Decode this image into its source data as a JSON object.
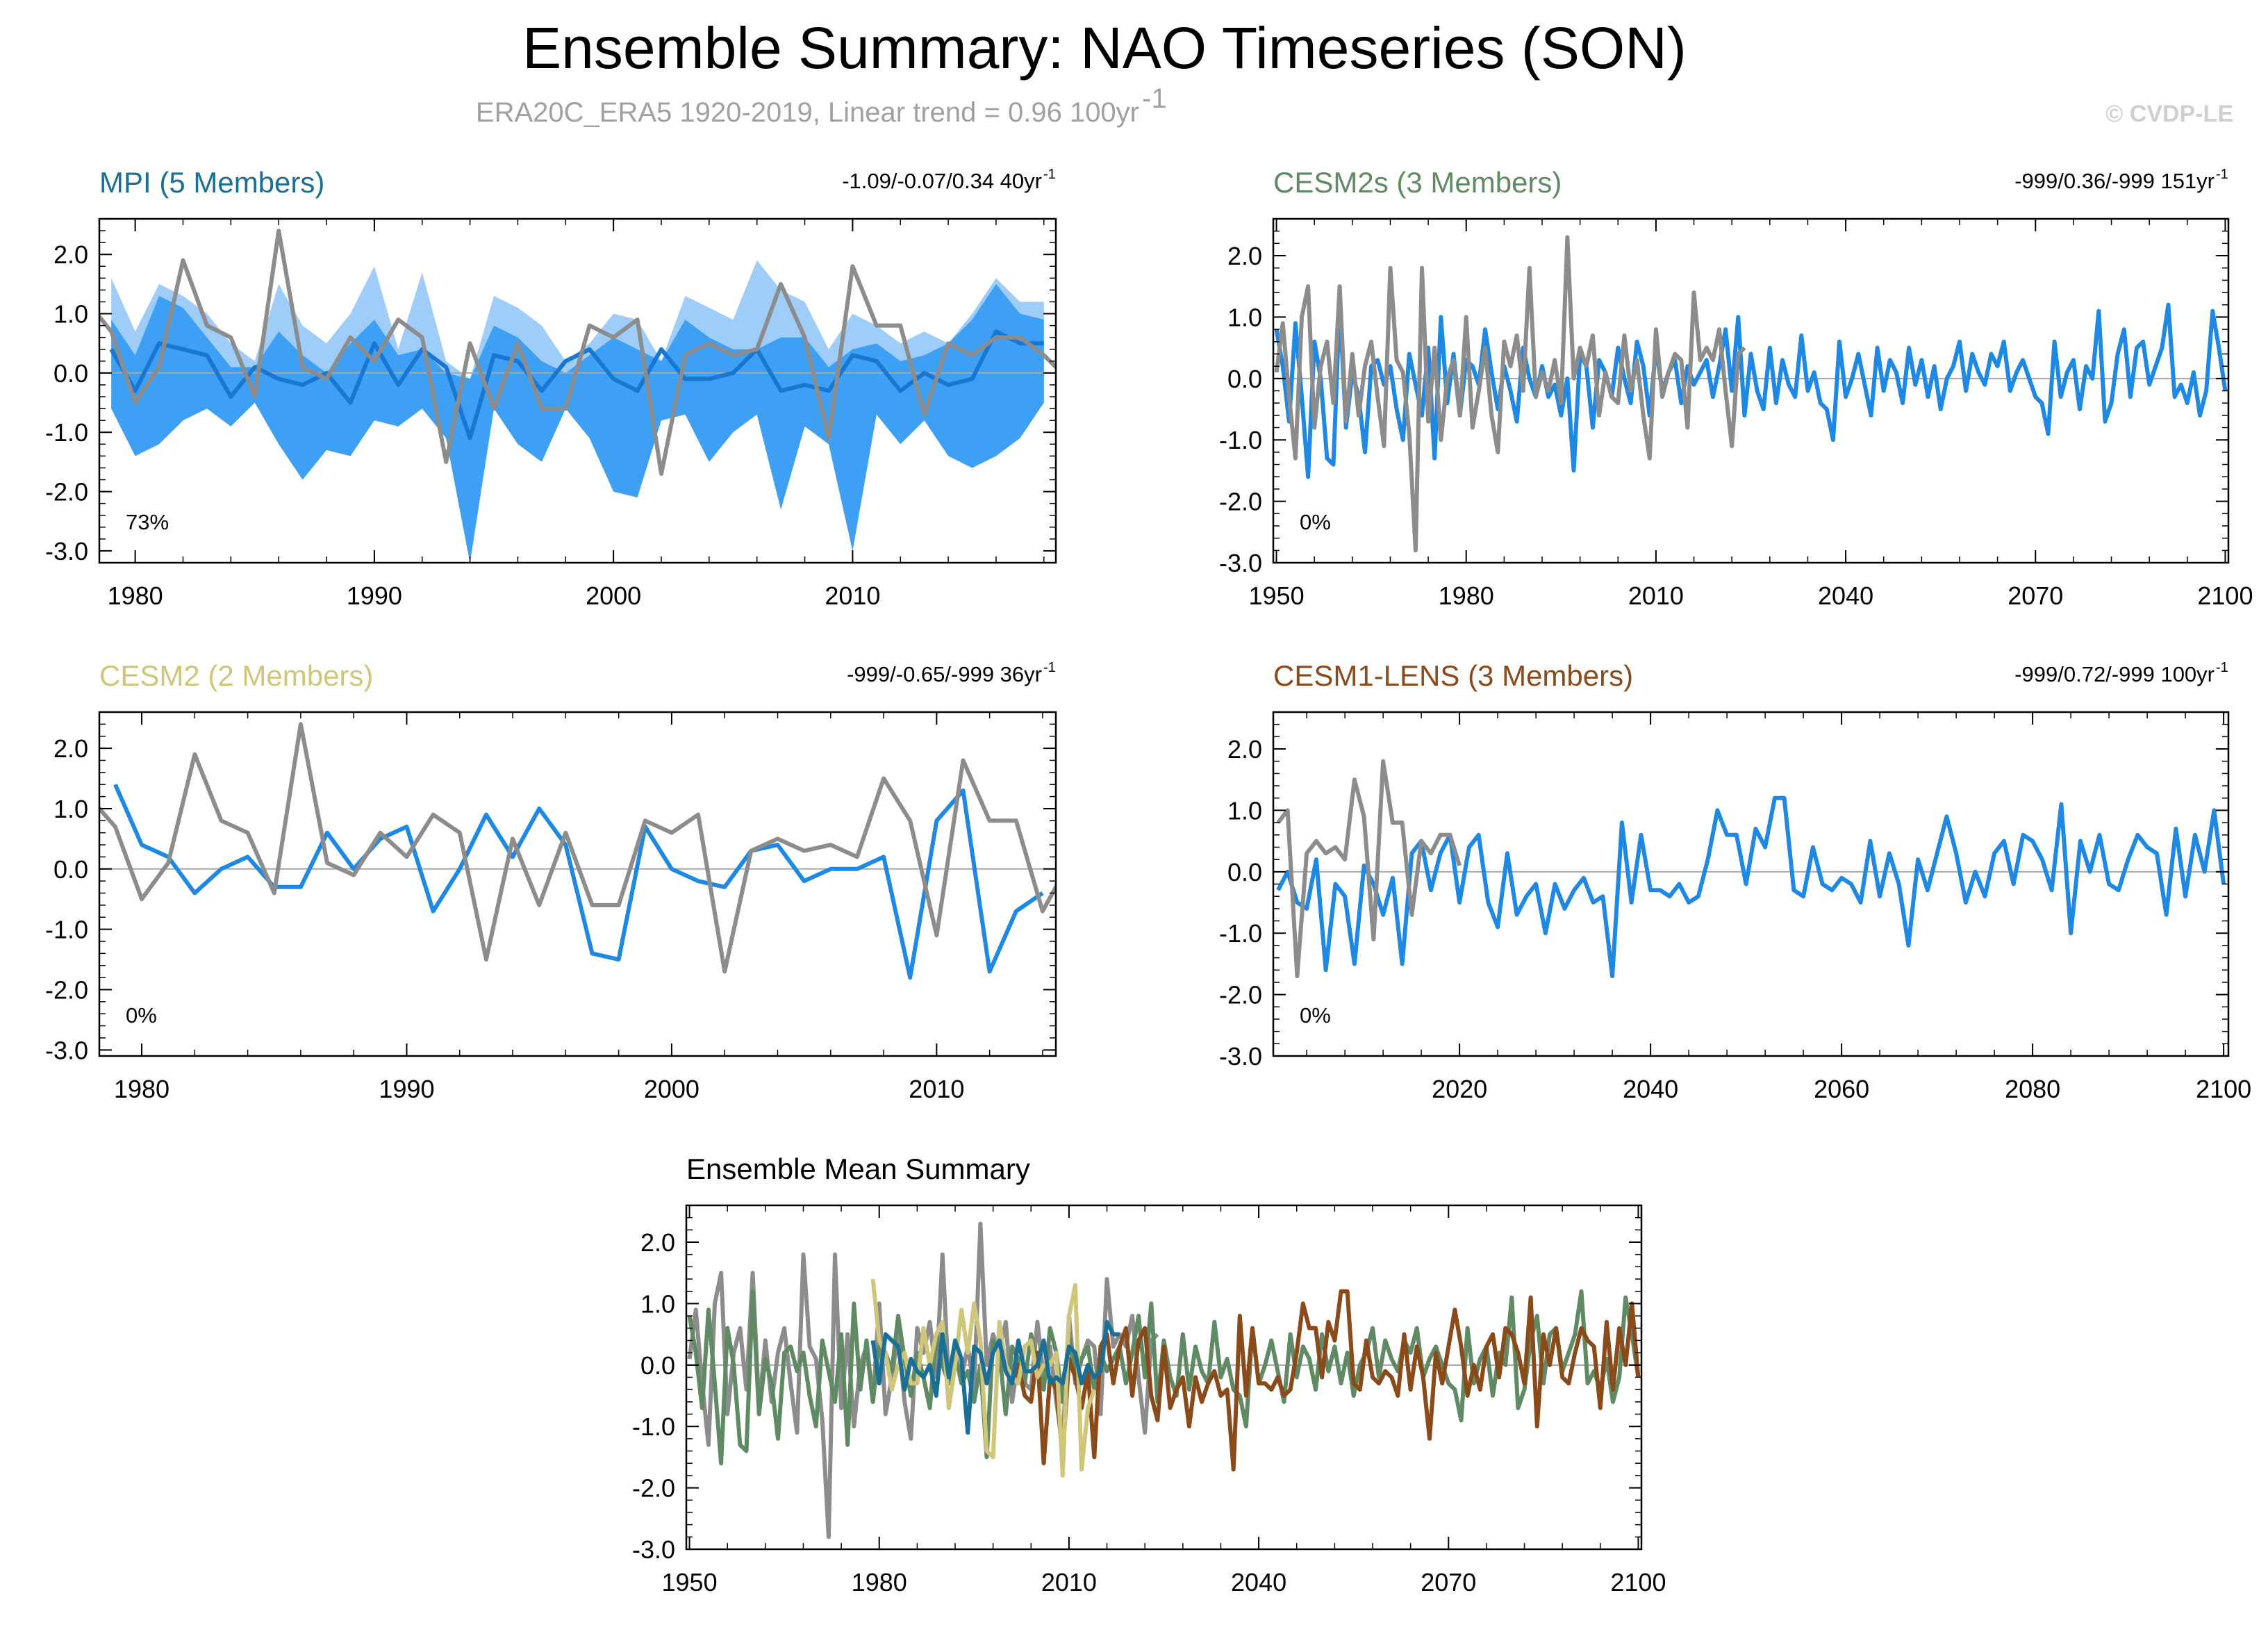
{
  "header": {
    "title": "Ensemble Summary: NAO Timeseries (SON)",
    "subtitle": "ERA20C_ERA5 1920-2019, Linear trend = 0.96 100yr",
    "subtitle_sup": "-1",
    "credit": "© CVDP-LE"
  },
  "colors": {
    "obs": "#8c8c8c",
    "model_line": "#1e88e5",
    "band_outer": "#9ecdf9",
    "band_inner": "#3ea0f5",
    "mpi_title": "#1a6f97",
    "cesm2s_title": "#5f8a64",
    "cesm2_title": "#cfc67a",
    "lens_title": "#8a4a1a",
    "mean_mpi": "#1a6f97",
    "mean_cesm2s": "#5f8a64",
    "mean_cesm2": "#cfc67a",
    "mean_lens": "#8a4a1a"
  },
  "chart_data": [
    {
      "id": "mpi",
      "type": "line",
      "title": "MPI (5 Members)",
      "stats": "-1.09/-0.07/0.34 40yr",
      "stats_sup": "-1",
      "percent": "73%",
      "xlim": [
        1978.5,
        2018.5
      ],
      "ylim": [
        -3.2,
        2.6
      ],
      "xticks": [
        1980,
        1990,
        2000,
        2010
      ],
      "yticks": [
        "2.0",
        "1.0",
        "0.0",
        "-1.0",
        "-2.0",
        "-3.0"
      ],
      "x": [
        1979,
        1980,
        1981,
        1982,
        1983,
        1984,
        1985,
        1986,
        1987,
        1988,
        1989,
        1990,
        1991,
        1992,
        1993,
        1994,
        1995,
        1996,
        1997,
        1998,
        1999,
        2000,
        2001,
        2002,
        2003,
        2004,
        2005,
        2006,
        2007,
        2008,
        2009,
        2010,
        2011,
        2012,
        2013,
        2014,
        2015,
        2016,
        2017,
        2018
      ],
      "band_outer_high": [
        1.6,
        0.7,
        1.5,
        1.3,
        1.0,
        0.5,
        0.2,
        1.5,
        0.8,
        0.5,
        1.0,
        1.8,
        0.4,
        1.7,
        0.2,
        -0.1,
        1.3,
        1.1,
        0.8,
        0.2,
        0.5,
        1.0,
        0.9,
        0.2,
        1.3,
        1.1,
        0.9,
        1.9,
        1.4,
        1.2,
        0.4,
        1.0,
        0.8,
        0.5,
        0.7,
        0.5,
        1.0,
        1.6,
        1.2,
        1.2
      ],
      "band_outer_low": [
        -0.6,
        -1.4,
        -1.2,
        -0.8,
        -0.6,
        -0.9,
        -0.5,
        -1.2,
        -1.8,
        -1.3,
        -1.4,
        -0.8,
        -0.9,
        -0.6,
        -1.1,
        -3.2,
        -0.6,
        -1.2,
        -1.5,
        -0.6,
        -1.1,
        -2.0,
        -2.1,
        -0.8,
        -0.7,
        -1.5,
        -1.0,
        -0.7,
        -2.3,
        -0.9,
        -1.2,
        -3.0,
        -0.7,
        -1.2,
        -0.8,
        -1.4,
        -1.6,
        -1.4,
        -1.1,
        -0.5
      ],
      "band_inner_high": [
        0.9,
        0.3,
        1.3,
        1.1,
        0.6,
        0.1,
        0.1,
        0.7,
        0.3,
        0.0,
        0.5,
        0.9,
        0.3,
        0.4,
        0.0,
        -0.1,
        0.8,
        0.6,
        0.2,
        0.0,
        0.3,
        0.6,
        0.4,
        0.2,
        0.9,
        0.6,
        0.4,
        0.4,
        0.6,
        0.6,
        0.1,
        0.4,
        0.5,
        0.2,
        0.3,
        0.5,
        0.9,
        1.5,
        1.0,
        0.9
      ],
      "band_inner_low": [
        -0.6,
        -1.4,
        -1.2,
        -0.8,
        -0.6,
        -0.9,
        -0.5,
        -1.2,
        -1.8,
        -1.3,
        -1.4,
        -0.8,
        -0.9,
        -0.6,
        -1.1,
        -3.2,
        -0.6,
        -1.2,
        -1.5,
        -0.6,
        -1.1,
        -2.0,
        -2.1,
        -0.8,
        -0.7,
        -1.5,
        -1.0,
        -0.7,
        -2.3,
        -0.9,
        -1.2,
        -3.0,
        -0.7,
        -1.2,
        -0.8,
        -1.4,
        -1.6,
        -1.4,
        -1.1,
        -0.5
      ],
      "series": [
        {
          "name": "Ensemble mean",
          "role": "model",
          "x": [
            1979,
            1980,
            1981,
            1982,
            1983,
            1984,
            1985,
            1986,
            1987,
            1988,
            1989,
            1990,
            1991,
            1992,
            1993,
            1994,
            1995,
            1996,
            1997,
            1998,
            1999,
            2000,
            2001,
            2002,
            2003,
            2004,
            2005,
            2006,
            2007,
            2008,
            2009,
            2010,
            2011,
            2012,
            2013,
            2014,
            2015,
            2016,
            2017,
            2018
          ],
          "values": [
            0.4,
            -0.3,
            0.5,
            0.4,
            0.3,
            -0.4,
            0.1,
            -0.1,
            -0.2,
            0.0,
            -0.5,
            0.5,
            -0.2,
            0.4,
            0.1,
            -1.1,
            0.3,
            0.2,
            -0.3,
            0.2,
            0.4,
            -0.1,
            -0.3,
            0.4,
            -0.1,
            -0.1,
            0.0,
            0.4,
            -0.3,
            -0.2,
            -0.3,
            0.3,
            0.2,
            -0.3,
            0.0,
            -0.2,
            -0.1,
            0.7,
            0.5,
            0.5
          ]
        },
        {
          "name": "ERA20C_ERA5",
          "role": "obs",
          "x": [
            1978,
            1979,
            1980,
            1981,
            1982,
            1983,
            1984,
            1985,
            1986,
            1987,
            1988,
            1989,
            1990,
            1991,
            1992,
            1993,
            1994,
            1995,
            1996,
            1997,
            1998,
            1999,
            2000,
            2001,
            2002,
            2003,
            2004,
            2005,
            2006,
            2007,
            2008,
            2009,
            2010,
            2011,
            2012,
            2013,
            2014,
            2015,
            2016,
            2017,
            2018,
            2019
          ],
          "values": [
            1.2,
            0.7,
            -0.5,
            0.1,
            1.9,
            0.8,
            0.6,
            -0.4,
            2.4,
            0.1,
            -0.1,
            0.6,
            0.2,
            0.9,
            0.6,
            -1.5,
            0.5,
            -0.6,
            0.5,
            -0.6,
            -0.6,
            0.8,
            0.6,
            0.9,
            -1.7,
            0.3,
            0.5,
            0.3,
            0.4,
            1.5,
            0.6,
            -1.1,
            1.8,
            0.8,
            0.8,
            -0.7,
            0.5,
            0.3,
            0.6,
            0.6,
            0.3,
            -0.1
          ]
        }
      ]
    },
    {
      "id": "cesm2s",
      "type": "line",
      "title": "CESM2s (3 Members)",
      "stats": "-999/0.36/-999 151yr",
      "stats_sup": "-1",
      "percent": "0%",
      "xlim": [
        1949.5,
        2100.5
      ],
      "ylim": [
        -3.0,
        2.6
      ],
      "xticks": [
        1950,
        1980,
        2010,
        2040,
        2070,
        2100
      ],
      "yticks": [
        "2.0",
        "1.0",
        "0.0",
        "-1.0",
        "-2.0",
        "-3.0"
      ],
      "series": [
        {
          "name": "CESM2s",
          "role": "model",
          "x_start": 1950,
          "values": [
            0.8,
            0.2,
            -0.7,
            0.9,
            -0.3,
            -1.6,
            0.6,
            0.0,
            -1.3,
            -1.4,
            1.2,
            -0.8,
            0.1,
            -0.3,
            -1.2,
            0.2,
            0.3,
            -0.1,
            0.2,
            -0.5,
            -1.0,
            0.4,
            -0.1,
            -0.6,
            0.5,
            -1.3,
            1.0,
            -0.4,
            0.4,
            -0.6,
            0.3,
            0.2,
            -0.1,
            0.8,
            0.1,
            -0.5,
            0.2,
            -0.2,
            -0.7,
            0.5,
            0.0,
            -0.3,
            0.2,
            -0.3,
            -0.1,
            -0.6,
            0.0,
            -1.5,
            0.4,
            0.2,
            -0.8,
            0.3,
            0.1,
            -0.3,
            0.5,
            0.0,
            -0.4,
            0.6,
            0.2,
            -0.6,
            0.5,
            -0.2,
            0.1,
            0.3,
            -0.4,
            0.2,
            -0.1,
            0.1,
            0.3,
            -0.3,
            0.2,
            0.8,
            -0.2,
            1.0,
            -0.6,
            0.4,
            -0.2,
            -0.5,
            0.5,
            -0.4,
            0.3,
            -0.1,
            -0.3,
            0.7,
            -0.2,
            0.1,
            -0.4,
            -0.5,
            -1.0,
            0.6,
            -0.3,
            0.0,
            0.4,
            -0.1,
            -0.6,
            0.5,
            -0.2,
            0.3,
            0.1,
            -0.4,
            0.5,
            -0.1,
            0.3,
            -0.3,
            0.2,
            -0.5,
            0.0,
            0.2,
            0.6,
            -0.2,
            0.4,
            0.1,
            -0.1,
            0.4,
            0.2,
            0.6,
            -0.2,
            0.1,
            0.3,
            0.0,
            -0.3,
            -0.4,
            -0.9,
            0.6,
            -0.3,
            0.1,
            0.3,
            -0.5,
            0.2,
            0.0,
            1.1,
            -0.7,
            -0.4,
            0.4,
            0.8,
            -0.3,
            0.5,
            0.6,
            -0.1,
            0.2,
            0.5,
            1.2,
            -0.3,
            -0.1,
            -0.4,
            0.1,
            -0.6,
            -0.2,
            1.1,
            0.5,
            -0.2
          ]
        },
        {
          "name": "ERA20C_ERA5",
          "role": "obs",
          "x_start": 1950,
          "values": [
            0.1,
            0.9,
            -0.3,
            -1.3,
            1.0,
            1.5,
            -0.8,
            0.2,
            0.6,
            -0.4,
            1.5,
            -0.7,
            0.4,
            -0.6,
            0.2,
            0.6,
            -0.3,
            -1.1,
            1.8,
            0.3,
            0.1,
            -0.9,
            -2.8,
            1.8,
            -0.7,
            0.5,
            -1.0,
            0.0,
            0.3,
            -0.6,
            1.0,
            -0.8,
            -0.2,
            0.5,
            -0.6,
            -1.2,
            0.6,
            0.2,
            0.7,
            -0.2,
            1.8,
            -0.3,
            0.1,
            -0.2,
            0.3,
            -0.4,
            2.3,
            0.0,
            0.5,
            0.2,
            0.7,
            -0.6,
            0.1,
            -0.3,
            -0.4,
            0.7,
            -0.2,
            0.3,
            -0.6,
            -1.3,
            0.8,
            -0.3,
            0.1,
            0.4,
            0.3,
            -0.8,
            1.4,
            0.3,
            0.5,
            0.3,
            0.8,
            -0.2,
            -1.1,
            0.4,
            0.5
          ]
        }
      ]
    },
    {
      "id": "cesm2",
      "type": "line",
      "title": "CESM2 (2 Members)",
      "stats": "-999/-0.65/-999 36yr",
      "stats_sup": "-1",
      "percent": "0%",
      "xlim": [
        1978.4,
        2014.5
      ],
      "ylim": [
        -3.1,
        2.6
      ],
      "xticks": [
        1980,
        1990,
        2000,
        2010
      ],
      "yticks": [
        "2.0",
        "1.0",
        "0.0",
        "-1.0",
        "-2.0",
        "-3.0"
      ],
      "series": [
        {
          "name": "CESM2",
          "role": "model",
          "x_start": 1979,
          "values": [
            1.4,
            0.4,
            0.2,
            -0.4,
            0.0,
            0.2,
            -0.3,
            -0.3,
            0.6,
            0.0,
            0.5,
            0.7,
            -0.7,
            0.0,
            0.9,
            0.2,
            1.0,
            0.4,
            -1.4,
            -1.5,
            0.7,
            0.0,
            -0.2,
            -0.3,
            0.3,
            0.4,
            -0.2,
            0.0,
            0.0,
            0.2,
            -1.8,
            0.8,
            1.3,
            -1.7,
            -0.7,
            -0.4
          ]
        },
        {
          "name": "ERA20C_ERA5",
          "role": "obs",
          "x_start": 1978,
          "values": [
            1.2,
            0.7,
            -0.5,
            0.1,
            1.9,
            0.8,
            0.6,
            -0.4,
            2.4,
            0.1,
            -0.1,
            0.6,
            0.2,
            0.9,
            0.6,
            -1.5,
            0.5,
            -0.6,
            0.6,
            -0.6,
            -0.6,
            0.8,
            0.6,
            0.9,
            -1.7,
            0.3,
            0.5,
            0.3,
            0.4,
            0.2,
            1.5,
            0.8,
            -1.1,
            1.8,
            0.8,
            0.8,
            -0.7,
            0.1
          ]
        }
      ]
    },
    {
      "id": "lens",
      "type": "line",
      "title": "CESM1-LENS (3 Members)",
      "stats": "-999/0.72/-999 100yr",
      "stats_sup": "-1",
      "percent": "0%",
      "xlim": [
        2000.5,
        2100.5
      ],
      "ylim": [
        -3.0,
        2.6
      ],
      "xticks": [
        2020,
        2040,
        2060,
        2080,
        2100
      ],
      "yticks": [
        "2.0",
        "1.0",
        "0.0",
        "-1.0",
        "-2.0",
        "-3.0"
      ],
      "series": [
        {
          "name": "CESM1-LENS",
          "role": "model",
          "x_start": 2001,
          "values": [
            -0.3,
            0.0,
            -0.5,
            -0.6,
            0.2,
            -1.6,
            -0.2,
            -0.4,
            -1.5,
            0.1,
            -0.2,
            -0.7,
            -0.1,
            -1.5,
            0.3,
            0.5,
            -0.3,
            0.3,
            0.6,
            -0.5,
            0.4,
            0.6,
            -0.5,
            -0.9,
            0.3,
            -0.7,
            -0.4,
            -0.2,
            -1.0,
            -0.2,
            -0.6,
            -0.3,
            -0.1,
            -0.5,
            -0.4,
            -1.7,
            0.8,
            -0.5,
            0.6,
            -0.3,
            -0.3,
            -0.4,
            -0.2,
            -0.5,
            -0.4,
            0.2,
            1.0,
            0.6,
            0.6,
            -0.2,
            0.7,
            0.4,
            1.2,
            1.2,
            -0.3,
            -0.4,
            0.4,
            -0.2,
            -0.3,
            -0.1,
            -0.2,
            -0.5,
            0.5,
            -0.4,
            0.3,
            -0.2,
            -1.2,
            0.2,
            -0.3,
            0.3,
            0.9,
            0.3,
            -0.5,
            0.0,
            -0.4,
            0.3,
            0.5,
            -0.2,
            0.6,
            0.5,
            0.2,
            -0.3,
            1.1,
            -1.0,
            0.5,
            0.0,
            0.6,
            -0.2,
            -0.3,
            0.2,
            0.6,
            0.4,
            0.3,
            -0.7,
            0.7,
            -0.4,
            0.6,
            0.0,
            1.0,
            -0.2
          ]
        },
        {
          "name": "ERA20C_ERA5",
          "role": "obs",
          "x_start": 2001,
          "values": [
            0.8,
            1.0,
            -1.7,
            0.3,
            0.5,
            0.3,
            0.4,
            0.2,
            1.5,
            0.9,
            -1.1,
            1.8,
            0.8,
            0.8,
            -0.7,
            0.5,
            0.3,
            0.6,
            0.6,
            0.1
          ]
        }
      ]
    },
    {
      "id": "mean",
      "type": "line",
      "title": "Ensemble Mean Summary",
      "xlim": [
        1949.5,
        2100.5
      ],
      "ylim": [
        -3.0,
        2.6
      ],
      "xticks": [
        1950,
        1980,
        2010,
        2040,
        2070,
        2100
      ],
      "yticks": [
        "2.0",
        "1.0",
        "0.0",
        "-1.0",
        "-2.0",
        "-3.0"
      ],
      "series": [
        {
          "name": "ERA20C_ERA5",
          "role": "obs",
          "ref": "cesm2s.obs"
        },
        {
          "name": "CESM2s",
          "role": "mean_cesm2s",
          "ref": "cesm2s.model"
        },
        {
          "name": "CESM1-LENS",
          "role": "mean_lens",
          "ref": "lens.model"
        },
        {
          "name": "CESM2",
          "role": "mean_cesm2",
          "ref": "cesm2.model"
        },
        {
          "name": "MPI",
          "role": "mean_mpi",
          "ref": "mpi.model"
        }
      ]
    }
  ]
}
